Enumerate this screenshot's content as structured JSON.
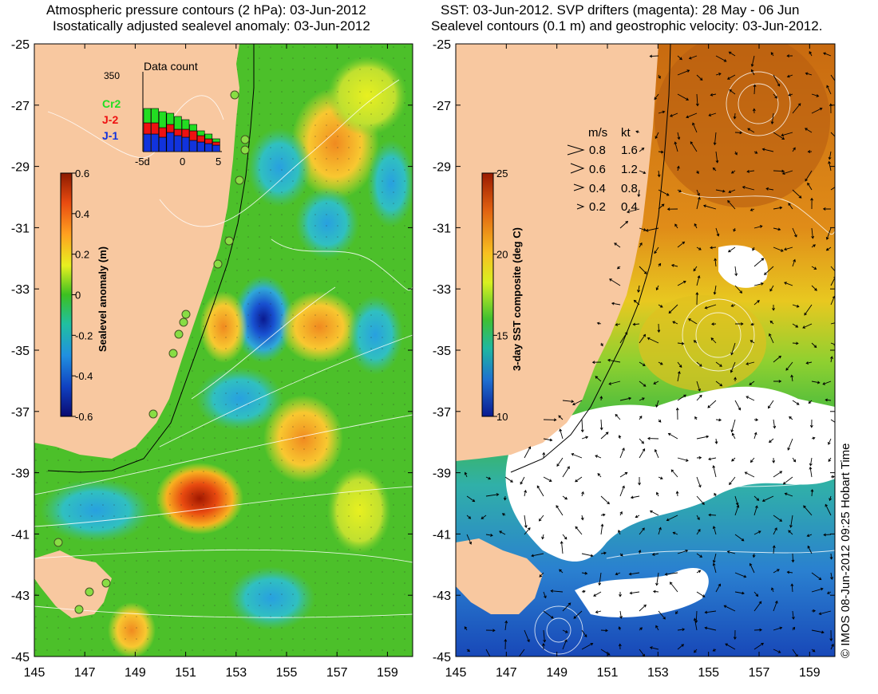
{
  "left_panel": {
    "title_line1": "Atmospheric pressure contours (2 hPa): 03-Jun-2012",
    "title_line2": "Isostatically adjusted sealevel anomaly: 03-Jun-2012",
    "y_ticks": [
      "-25",
      "-27",
      "-29",
      "-31",
      "-33",
      "-35",
      "-37",
      "-39",
      "-41",
      "-43",
      "-45"
    ],
    "x_ticks": [
      "145",
      "147",
      "149",
      "151",
      "153",
      "155",
      "157",
      "159"
    ],
    "colorbar": {
      "label": "Sealevel anomaly (m)",
      "ticks": [
        "0.6",
        "0.4",
        "0.2",
        "0",
        "-0.2",
        "-0.4",
        "-0.6"
      ],
      "min": -0.6,
      "max": 0.6
    },
    "inset": {
      "title": "Data count",
      "max_label": "350",
      "x_ticks": [
        "-5d",
        "0",
        "5"
      ],
      "legend": [
        {
          "label": "Cr2",
          "color": "#22dd22"
        },
        {
          "label": "J-2",
          "color": "#ee1111"
        },
        {
          "label": "J-1",
          "color": "#1133dd"
        }
      ]
    }
  },
  "right_panel": {
    "title_line1": "SST: 03-Jun-2012. SVP drifters (magenta): 28 May - 06 Jun",
    "title_line2": "Sealevel contours (0.1 m) and geostrophic velocity: 03-Jun-2012.",
    "y_ticks": [
      "-25",
      "-27",
      "-29",
      "-31",
      "-33",
      "-35",
      "-37",
      "-39",
      "-41",
      "-43",
      "-45"
    ],
    "x_ticks": [
      "145",
      "147",
      "149",
      "151",
      "153",
      "155",
      "157",
      "159"
    ],
    "colorbar": {
      "label": "3-day SST composite (deg C)",
      "ticks": [
        "25",
        "20",
        "15",
        "10"
      ],
      "min": 10,
      "max": 25
    },
    "velocity_legend": {
      "header_ms": "m/s",
      "header_kt": "kt",
      "rows": [
        {
          "ms": "0.8",
          "kt": "1.6"
        },
        {
          "ms": "0.6",
          "kt": "1.2"
        },
        {
          "ms": "0.4",
          "kt": "0.8"
        },
        {
          "ms": "0.2",
          "kt": "0.4"
        }
      ]
    }
  },
  "credit": "© IMOS 08-Jun-2012 09:25 Hobart Time",
  "colors": {
    "land": "#f8c8a0",
    "ocean_sla_neutral": "#4cc02a",
    "sst_warm": "#d97a12",
    "sst_cold": "#1166cc",
    "cloud": "#ffffff"
  }
}
